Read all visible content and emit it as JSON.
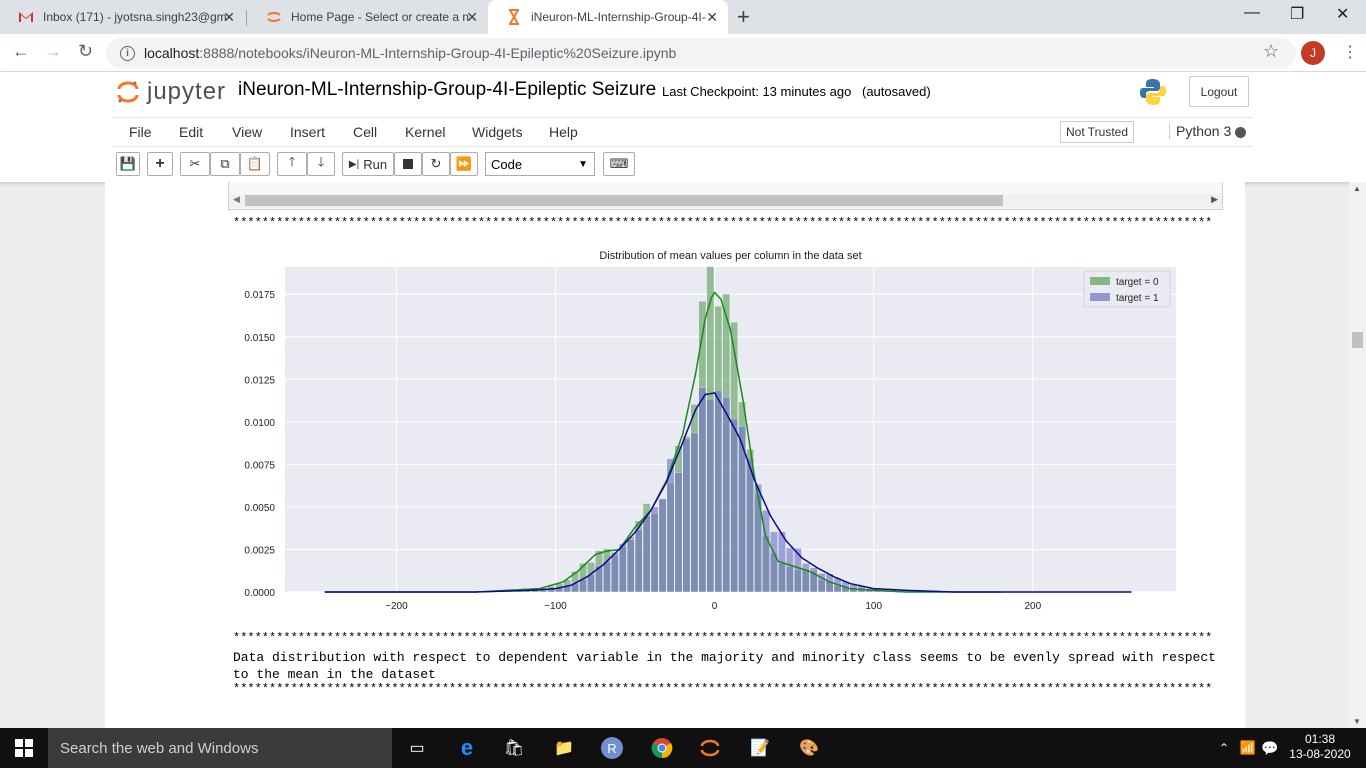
{
  "browser": {
    "tabs": [
      {
        "icon": "gmail-icon",
        "title": "Inbox (171) - jyotsna.singh23@gm"
      },
      {
        "icon": "jupyter-icon",
        "title": "Home Page - Select or create a n"
      },
      {
        "icon": "hourglass-icon",
        "title": "iNeuron-ML-Internship-Group-4I-"
      }
    ],
    "url_host": "localhost",
    "url_path": ":8888/notebooks/iNeuron-ML-Internship-Group-4I-Epileptic%20Seizure.ipynb",
    "avatar_letter": "J"
  },
  "jupyter": {
    "logo_text": "jupyter",
    "notebook_title": "iNeuron-ML-Internship-Group-4I-Epileptic Seizure",
    "checkpoint": "Last Checkpoint: 13 minutes ago",
    "autosaved": "(autosaved)",
    "logout_label": "Logout",
    "menu": [
      "File",
      "Edit",
      "View",
      "Insert",
      "Cell",
      "Kernel",
      "Widgets",
      "Help"
    ],
    "not_trusted": "Not Trusted",
    "kernel_name": "Python 3",
    "run_label": "Run",
    "cell_type": "Code"
  },
  "output": {
    "stars": "*********************************************************************************************************************************************",
    "text_line1": "Data distribution with respect to dependent variable in the majority and minority class seems to be evenly spread with respect",
    "text_line2": "to the mean in the dataset"
  },
  "chart_data": {
    "type": "histogram+kde",
    "title": "Distribution of mean values per column in the data set",
    "xlim": [
      -270,
      290
    ],
    "ylim": [
      0,
      0.0191
    ],
    "xticks": [
      -200,
      -100,
      0,
      100,
      200
    ],
    "xtick_labels": [
      "−200",
      "−100",
      "0",
      "100",
      "200"
    ],
    "yticks": [
      0.0,
      0.0025,
      0.005,
      0.0075,
      0.01,
      0.0125,
      0.015,
      0.0175
    ],
    "ytick_labels": [
      "0.0000",
      "0.0025",
      "0.0050",
      "0.0075",
      "0.0100",
      "0.0125",
      "0.0150",
      "0.0175"
    ],
    "legend_position": "top-right",
    "grid": true,
    "series": [
      {
        "name": "target = 0",
        "color": "#5a9e5a",
        "line_color": "#1a8a1a",
        "kde_x": [
          -245,
          -150,
          -110,
          -95,
          -85,
          -75,
          -68,
          -60,
          -50,
          -40,
          -30,
          -20,
          -12,
          -6,
          -2,
          0,
          4,
          10,
          18,
          25,
          32,
          40,
          50,
          60,
          72,
          85,
          100,
          120,
          150,
          180
        ],
        "kde_y": [
          0.0,
          0.0,
          0.0002,
          0.0006,
          0.0013,
          0.0022,
          0.0024,
          0.0025,
          0.0038,
          0.0048,
          0.0066,
          0.0093,
          0.0128,
          0.016,
          0.0173,
          0.0176,
          0.0172,
          0.0154,
          0.0112,
          0.0068,
          0.0033,
          0.0018,
          0.0015,
          0.0012,
          0.0006,
          0.0002,
          0.0001,
          0.0,
          0.0,
          0.0
        ]
      },
      {
        "name": "target = 1",
        "color": "#7070c8",
        "line_color": "#0a0a8a",
        "kde_x": [
          -245,
          -150,
          -115,
          -100,
          -90,
          -80,
          -70,
          -60,
          -50,
          -40,
          -30,
          -20,
          -12,
          -6,
          0,
          8,
          16,
          25,
          35,
          45,
          55,
          65,
          75,
          85,
          100,
          120,
          150,
          200,
          262
        ],
        "kde_y": [
          0.0,
          0.0,
          0.0001,
          0.0002,
          0.0004,
          0.0009,
          0.0016,
          0.0025,
          0.0035,
          0.0048,
          0.0065,
          0.0088,
          0.0107,
          0.0116,
          0.0117,
          0.0104,
          0.009,
          0.0066,
          0.0045,
          0.003,
          0.002,
          0.0014,
          0.0009,
          0.0005,
          0.0002,
          0.0001,
          0.0,
          0.0,
          0.0
        ]
      }
    ]
  },
  "taskbar": {
    "search_placeholder": "Search the web and Windows",
    "time": "01:38",
    "date": "13-08-2020"
  }
}
